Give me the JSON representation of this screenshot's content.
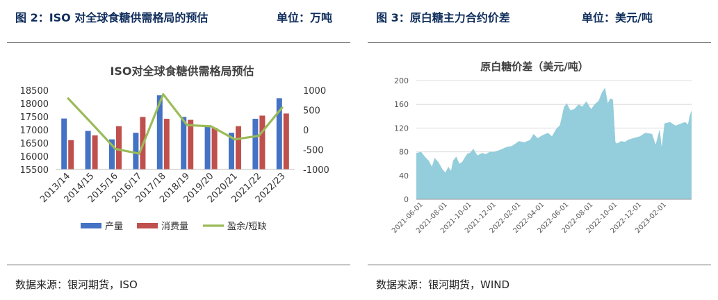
{
  "left_panel": {
    "caption": "图 2：ISO 对全球食糖供需格局的预估",
    "unit": "单位：万吨",
    "source": "数据来源：银河期货，ISO"
  },
  "right_panel": {
    "caption": "图 3：原白糖主力合约价差",
    "unit": "单位：美元/吨",
    "source": "数据来源：银河期货，WIND"
  },
  "colors": {
    "production": "#4472c4",
    "consumption": "#c0504d",
    "surplus": "#9bbb59",
    "area": "#94cddb",
    "caption": "#0f2d5c"
  },
  "chart_data": [
    {
      "type": "bar",
      "title": "ISO对全球食糖供需格局预估",
      "categories": [
        "2013/14",
        "2014/15",
        "2015/16",
        "2016/17",
        "2017/18",
        "2018/19",
        "2019/20",
        "2020/21",
        "2021/22",
        "2022/23"
      ],
      "ylim": [
        15500,
        18500
      ],
      "y_ticks": [
        15500,
        16000,
        16500,
        17000,
        17500,
        18000,
        18500
      ],
      "y2lim": [
        -1000,
        1000
      ],
      "y2_ticks": [
        -1000,
        -500,
        0,
        500,
        1000
      ],
      "legend_position": "bottom",
      "series": [
        {
          "name": "产量",
          "type": "bar",
          "axis": "left",
          "values": [
            17430,
            16960,
            16640,
            16890,
            18310,
            17490,
            17140,
            16890,
            17420,
            18200
          ]
        },
        {
          "name": "消费量",
          "type": "bar",
          "axis": "left",
          "values": [
            16610,
            16790,
            17140,
            17490,
            17420,
            17380,
            17080,
            17140,
            17540,
            17620
          ]
        },
        {
          "name": "盈余/短缺",
          "type": "line",
          "axis": "right",
          "values": [
            810,
            170,
            -480,
            -600,
            900,
            120,
            90,
            -240,
            -150,
            580
          ]
        }
      ]
    },
    {
      "type": "area",
      "title": "原白糖价差（美元/吨）",
      "ylim": [
        0,
        200
      ],
      "y_ticks": [
        0,
        40,
        80,
        120,
        160,
        200
      ],
      "x_ticks": [
        "2021-06-01",
        "2021-08-01",
        "2021-10-01",
        "2021-12-01",
        "2022-02-01",
        "2022-04-01",
        "2022-06-01",
        "2022-08-01",
        "2022-10-01",
        "2022-12-01",
        "2023-02-01"
      ],
      "x_range": [
        "2021-05-20",
        "2023-04-10"
      ],
      "series": [
        {
          "x": [
            "2021-05-20",
            "2021-06-01",
            "2021-06-10",
            "2021-06-20",
            "2021-06-28",
            "2021-07-05",
            "2021-07-15",
            "2021-07-25",
            "2021-08-01",
            "2021-08-08",
            "2021-08-15",
            "2021-08-20",
            "2021-08-28",
            "2021-09-05",
            "2021-09-12",
            "2021-09-18",
            "2021-09-25",
            "2021-10-01",
            "2021-10-10",
            "2021-10-20",
            "2021-11-01",
            "2021-11-10",
            "2021-11-20",
            "2021-12-01",
            "2021-12-15",
            "2022-01-01",
            "2022-01-15",
            "2022-02-01",
            "2022-02-15",
            "2022-03-01",
            "2022-03-10",
            "2022-03-20",
            "2022-04-01",
            "2022-04-15",
            "2022-04-25",
            "2022-05-05",
            "2022-05-15",
            "2022-05-25",
            "2022-06-01",
            "2022-06-10",
            "2022-06-20",
            "2022-07-01",
            "2022-07-10",
            "2022-07-20",
            "2022-08-01",
            "2022-08-10",
            "2022-08-20",
            "2022-08-28",
            "2022-09-05",
            "2022-09-12",
            "2022-09-18",
            "2022-09-25",
            "2022-10-01",
            "2022-10-05",
            "2022-10-15",
            "2022-10-25",
            "2022-11-01",
            "2022-11-15",
            "2022-12-01",
            "2022-12-15",
            "2023-01-01",
            "2023-01-10",
            "2023-01-20",
            "2023-01-25",
            "2023-02-01",
            "2023-02-15",
            "2023-03-01",
            "2023-03-15",
            "2023-03-25",
            "2023-04-01",
            "2023-04-05",
            "2023-04-10"
          ],
          "values": [
            78,
            80,
            72,
            65,
            55,
            70,
            62,
            50,
            45,
            55,
            48,
            65,
            72,
            60,
            63,
            70,
            77,
            78,
            85,
            74,
            78,
            76,
            80,
            80,
            83,
            88,
            90,
            98,
            96,
            100,
            110,
            103,
            108,
            112,
            106,
            118,
            125,
            155,
            162,
            150,
            152,
            160,
            156,
            165,
            152,
            160,
            166,
            180,
            188,
            162,
            170,
            168,
            96,
            94,
            98,
            97,
            100,
            103,
            106,
            112,
            110,
            92,
            118,
            88,
            128,
            130,
            124,
            128,
            130,
            126,
            140,
            150
          ]
        }
      ]
    }
  ]
}
